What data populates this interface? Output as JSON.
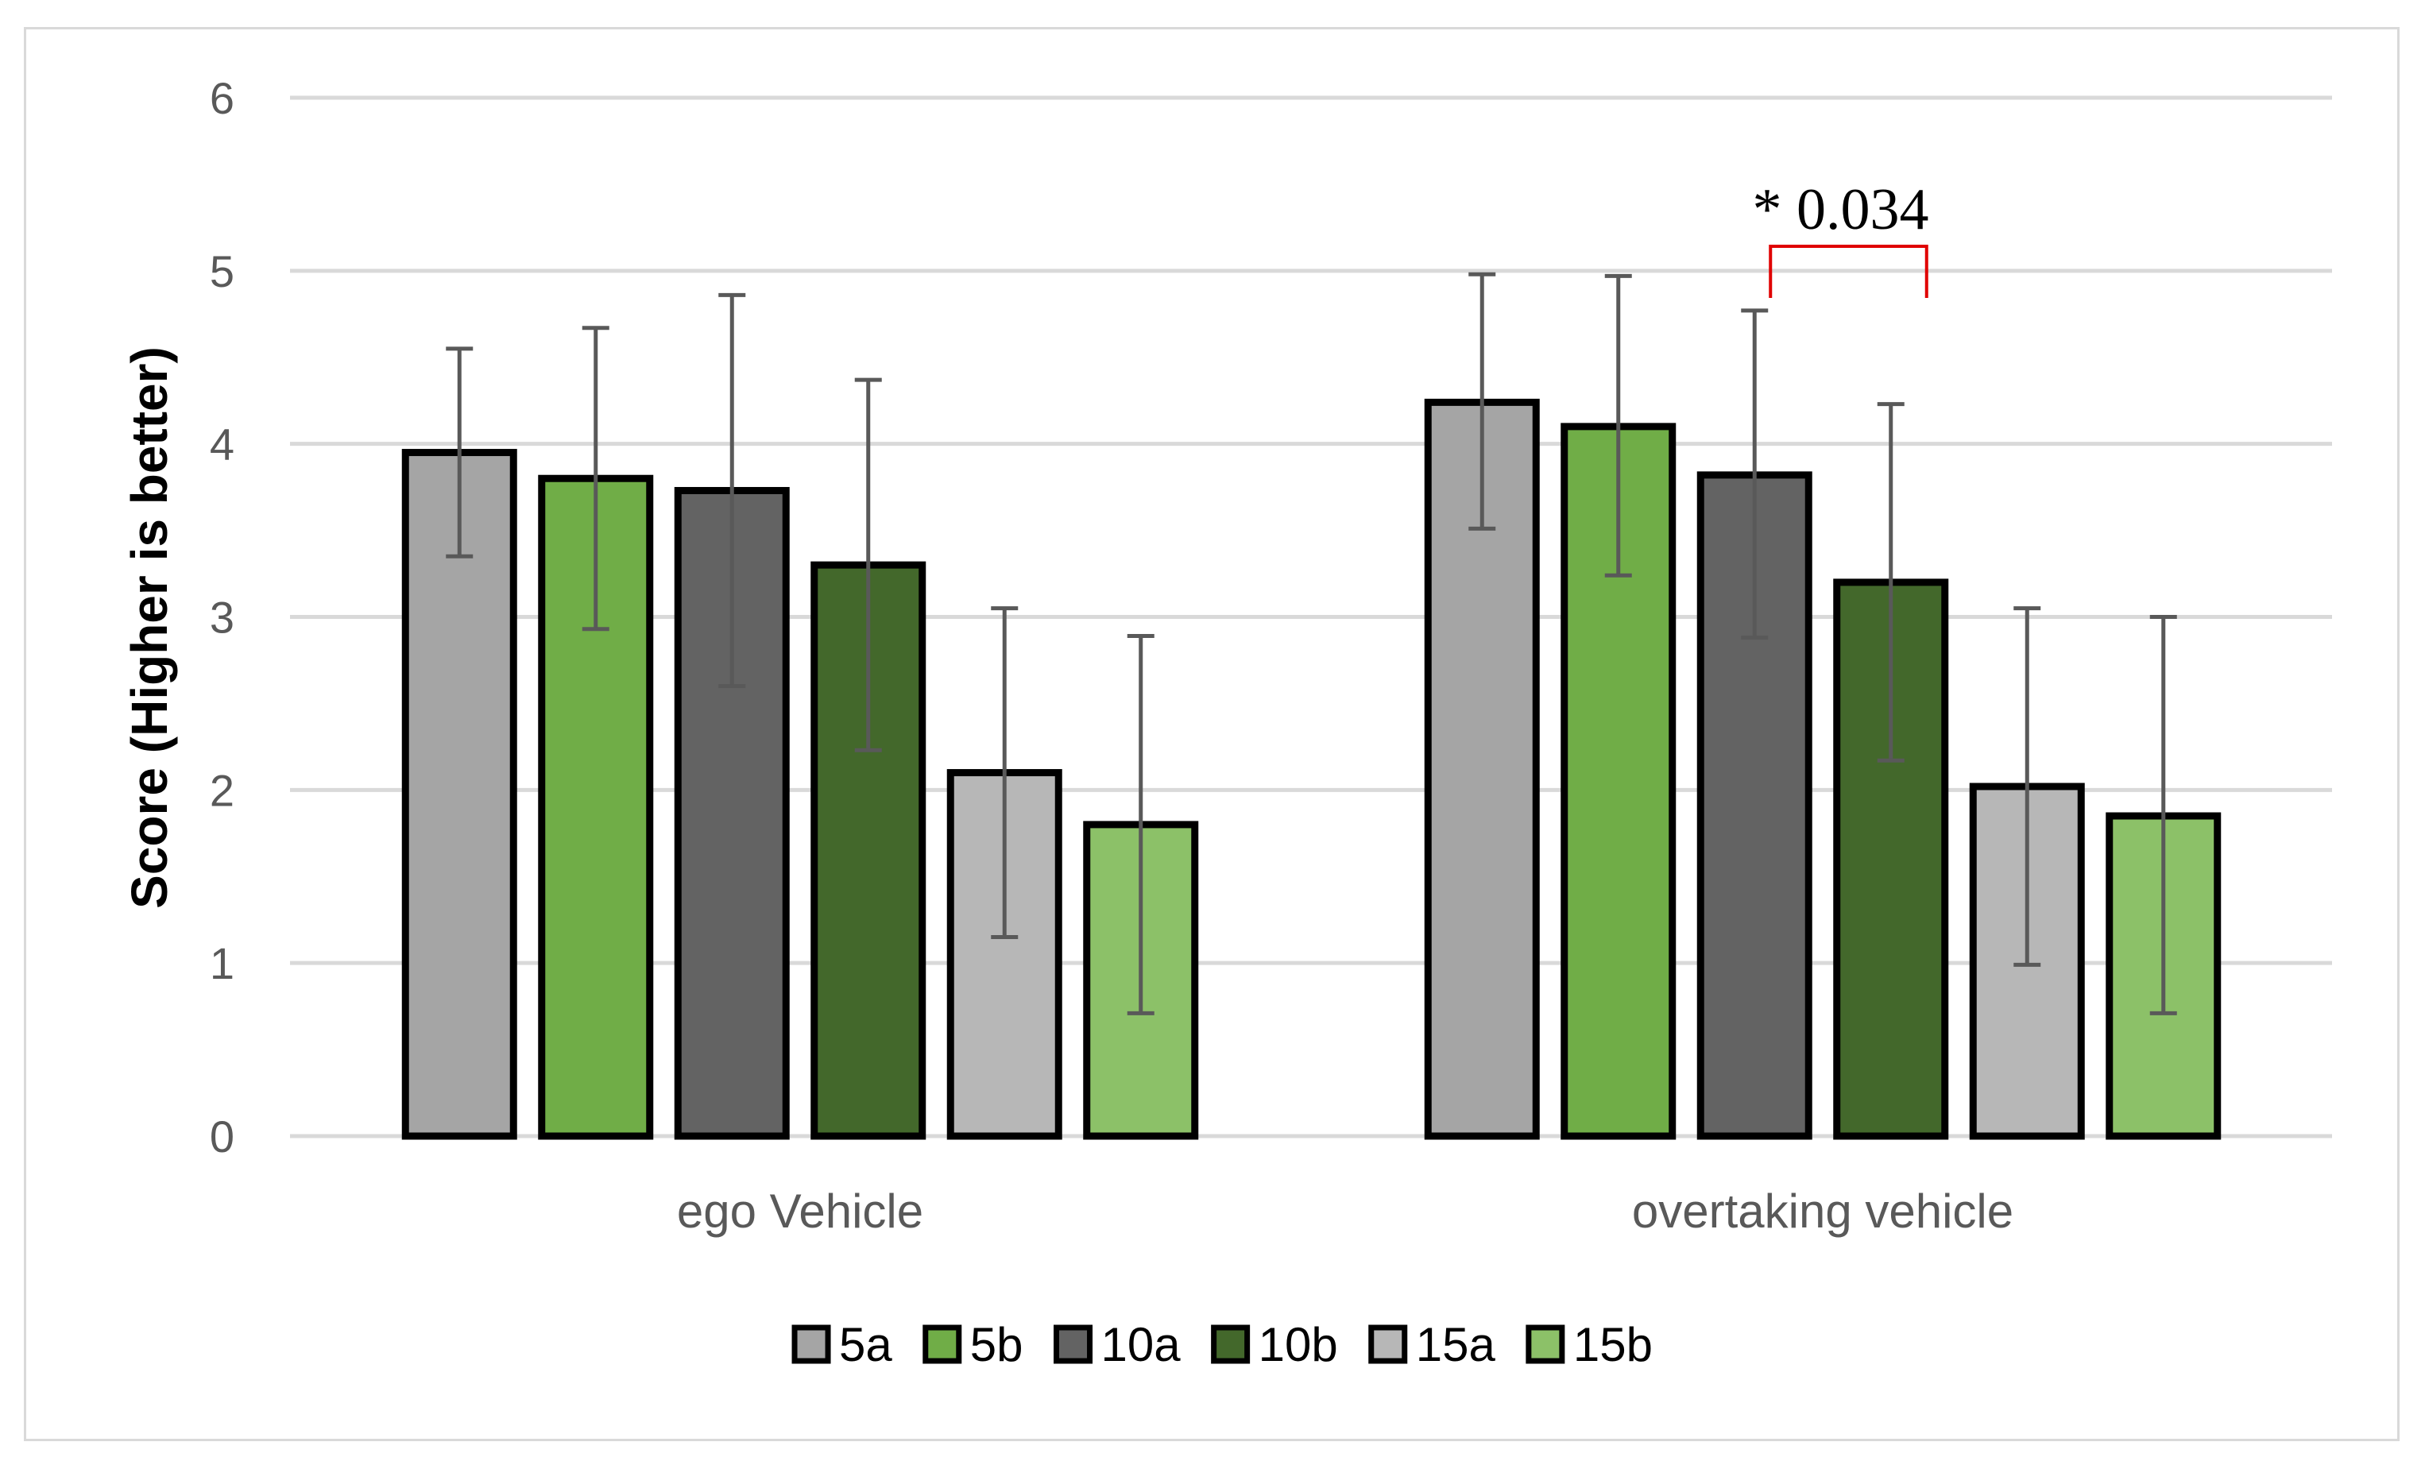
{
  "chart_data": {
    "type": "bar",
    "title": "",
    "xlabel": "",
    "ylabel": "Score (Higher is better)",
    "ylim": [
      0,
      6
    ],
    "yticks": [
      0,
      1,
      2,
      3,
      4,
      5,
      6
    ],
    "grid": true,
    "legend_position": "bottom",
    "categories": [
      "ego Vehicle",
      "overtaking vehicle"
    ],
    "series": [
      {
        "name": "5a",
        "color": "#a5a5a5",
        "values": [
          3.95,
          4.24
        ],
        "error_low": [
          3.35,
          3.51
        ],
        "error_high": [
          4.55,
          4.98
        ]
      },
      {
        "name": "5b",
        "color": "#70ad47",
        "values": [
          3.8,
          4.1
        ],
        "error_low": [
          2.93,
          3.24
        ],
        "error_high": [
          4.67,
          4.97
        ]
      },
      {
        "name": "10a",
        "color": "#636363",
        "values": [
          3.73,
          3.82
        ],
        "error_low": [
          2.6,
          2.88
        ],
        "error_high": [
          4.86,
          4.77
        ]
      },
      {
        "name": "10b",
        "color": "#43682b",
        "values": [
          3.3,
          3.2
        ],
        "error_low": [
          2.23,
          2.17
        ],
        "error_high": [
          4.37,
          4.23
        ]
      },
      {
        "name": "15a",
        "color": "#b7b7b7",
        "values": [
          2.1,
          2.02
        ],
        "error_low": [
          1.15,
          0.99
        ],
        "error_high": [
          3.05,
          3.05
        ]
      },
      {
        "name": "15b",
        "color": "#8cc168",
        "values": [
          1.8,
          1.85
        ],
        "error_low": [
          0.71,
          0.71
        ],
        "error_high": [
          2.89,
          3.0
        ]
      }
    ],
    "annotations": [
      {
        "text": "* 0.034",
        "category": "overtaking vehicle",
        "from_series": "10a",
        "to_series": "10b",
        "color": "#e00000"
      }
    ]
  }
}
